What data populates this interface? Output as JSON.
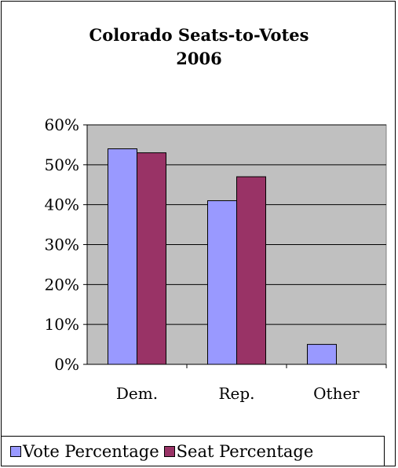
{
  "chart_data": {
    "type": "bar",
    "title_line1": "Colorado Seats-to-Votes",
    "title_line2": "2006",
    "categories": [
      "Dem.",
      "Rep.",
      "Other"
    ],
    "series": [
      {
        "name": "Vote Percentage",
        "values": [
          54,
          41,
          5
        ],
        "color": "#9999ff"
      },
      {
        "name": "Seat Percentage",
        "values": [
          53,
          47,
          0
        ],
        "color": "#993366"
      }
    ],
    "yticks": [
      "0%",
      "10%",
      "20%",
      "30%",
      "40%",
      "50%",
      "60%"
    ],
    "ylim": [
      0,
      60
    ],
    "plot_background": "#c0c0c0",
    "grid": true,
    "legend_position": "bottom"
  }
}
